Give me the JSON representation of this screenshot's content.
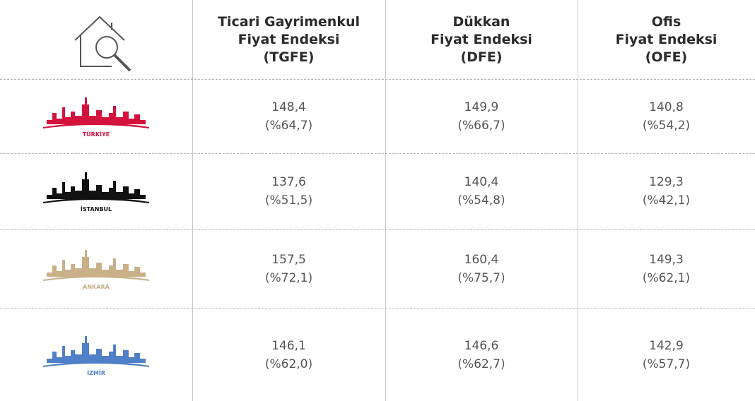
{
  "header": {
    "columns": [
      [
        "Ticari Gayrimenkul",
        "Fiyat Endeksi",
        "(TGFE)"
      ],
      [
        "Dükkan",
        "Fiyat Endeksi",
        "(DFE)"
      ],
      [
        "Ofis",
        "Fiyat Endeksi",
        "(OFE)"
      ]
    ]
  },
  "table": {
    "rows": [
      {
        "city": "TÜRKİYE",
        "cells": [
          [
            "148,4",
            "(%64,7)"
          ],
          [
            "149,9",
            "(%66,7)"
          ],
          [
            "140,8",
            "(%54,2)"
          ]
        ]
      },
      {
        "city": "İSTANBUL",
        "cells": [
          [
            "137,6",
            "(%51,5)"
          ],
          [
            "140,4",
            "(%54,8)"
          ],
          [
            "129,3",
            "(%42,1)"
          ]
        ]
      },
      {
        "city": "ANKARA",
        "cells": [
          [
            "157,5",
            "(%72,1)"
          ],
          [
            "160,4",
            "(%75,7)"
          ],
          [
            "149,3",
            "(%62,1)"
          ]
        ]
      },
      {
        "city": "İZMİR",
        "cells": [
          [
            "146,1",
            "(%62,0)"
          ],
          [
            "146,6",
            "(%62,7)"
          ],
          [
            "142,9",
            "(%57,7)"
          ]
        ]
      }
    ]
  }
}
